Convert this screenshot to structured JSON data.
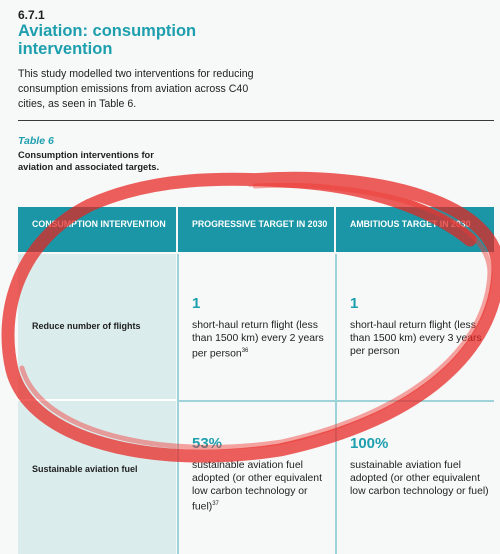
{
  "section": {
    "number": "6.7.1",
    "title": "Aviation: consumption intervention",
    "intro": "This study modelled two interventions for reducing consumption emissions from aviation across C40 cities, as seen in Table 6."
  },
  "table": {
    "label": "Table 6",
    "caption": "Consumption interventions for aviation and associated targets.",
    "headers": [
      "CONSUMPTION INTERVENTION",
      "PROGRESSIVE TARGET IN 2030",
      "AMBITIOUS TARGET IN 2030"
    ],
    "rows": [
      {
        "intervention": "Reduce number of flights",
        "progressive": {
          "value": "1",
          "text": "short-haul return flight (less than 1500 km) every 2 years per person",
          "ref": "36"
        },
        "ambitious": {
          "value": "1",
          "text": "short-haul return flight (less than 1500 km) every 3 years per person",
          "ref": ""
        }
      },
      {
        "intervention": "Sustainable aviation fuel",
        "progressive": {
          "value": "53%",
          "text": "sustainable aviation fuel adopted (or other equivalent low carbon technology or fuel)",
          "ref": "37"
        },
        "ambitious": {
          "value": "100%",
          "text": "sustainable aviation fuel adopted (or other equivalent low carbon technology or fuel)",
          "ref": ""
        }
      }
    ]
  },
  "annotation": {
    "color": "#e8231f",
    "shape": "hand-drawn-ellipse"
  }
}
